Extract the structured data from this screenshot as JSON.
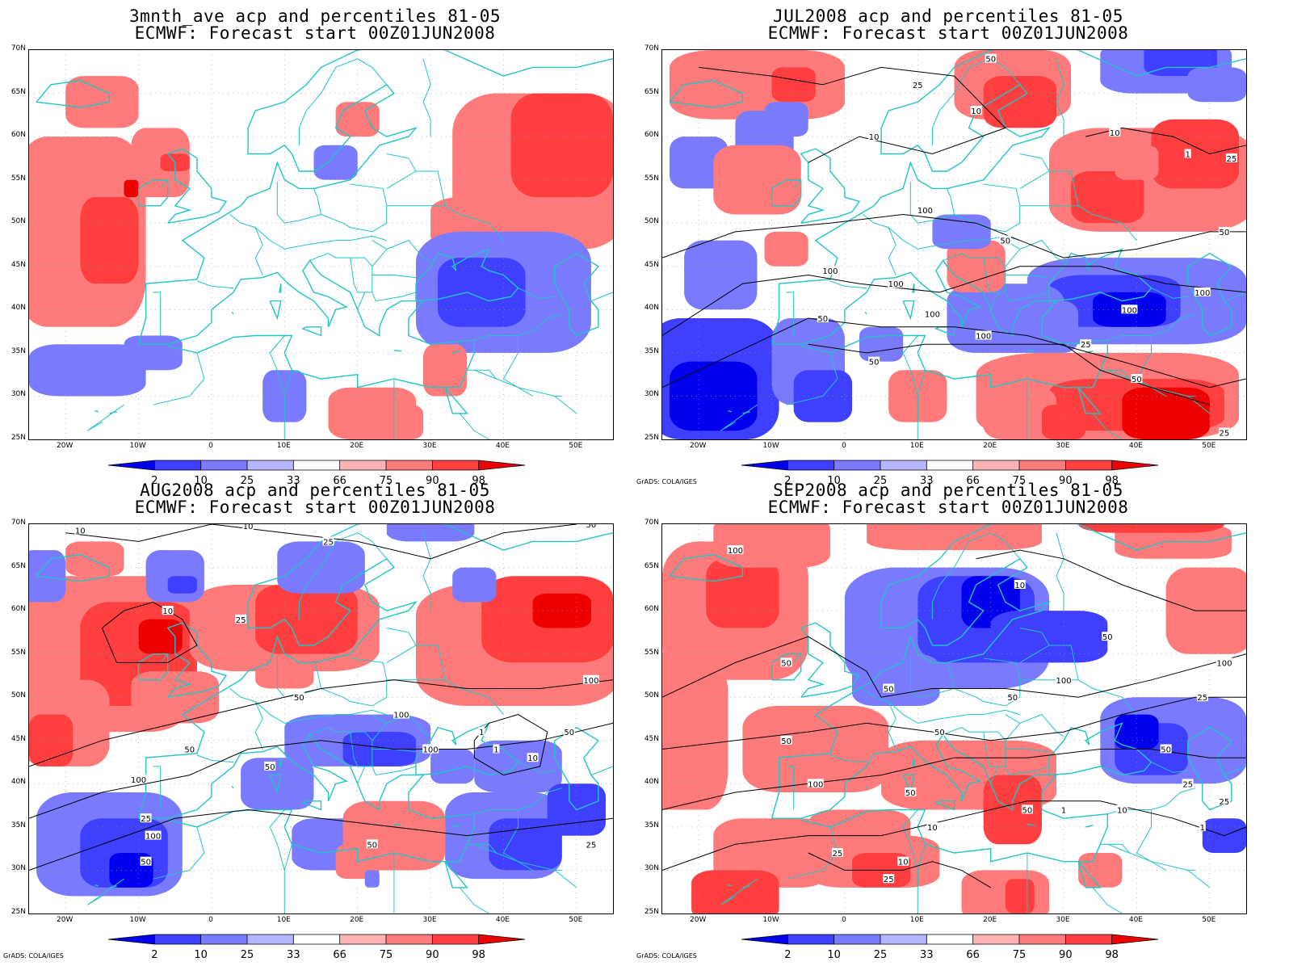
{
  "map_data": {
    "panels": [
      {
        "title1": "3mnth_ave acp and percentiles 81-05",
        "title2": "ECMWF: Forecast start 00Z01JUN2008",
        "source": "",
        "contours": []
      },
      {
        "title1": "JUL2008 acp and percentiles 81-05",
        "title2": "ECMWF: Forecast start 00Z01JUN2008",
        "source": "GrADS: COLA/IGES",
        "contour_labels": [
          "100",
          "50",
          "50",
          "100",
          "100",
          "100",
          "50",
          "100",
          "100",
          "50",
          "100",
          "25",
          "50",
          "25",
          "25",
          "50",
          "10",
          "10",
          "10",
          "1",
          "25",
          "10",
          "1",
          "1",
          "1",
          "1"
        ]
      },
      {
        "title1": "AUG2008 acp and percentiles 81-05",
        "title2": "ECMWF: Forecast start 00Z01JUN2008",
        "source": "GrADS: COLA/IGES",
        "contour_labels": [
          "50",
          "50",
          "100",
          "100",
          "100",
          "50",
          "100",
          "50",
          "25",
          "100",
          "50",
          "50",
          "25",
          "10",
          "10",
          "25",
          "50",
          "10",
          "25",
          "1",
          "1",
          "10",
          "1",
          "1",
          "1"
        ]
      },
      {
        "title1": "SEP2008 acp and percentiles 81-05",
        "title2": "ECMWF: Forecast start 00Z01JUN2008",
        "source": "GrADS: COLA/IGES",
        "contour_labels": [
          "100",
          "50",
          "100",
          "100",
          "50",
          "50",
          "50",
          "50",
          "25",
          "100",
          "50",
          "50",
          "50",
          "25",
          "25",
          "10",
          "10",
          "1",
          "10",
          "1",
          "25",
          "10",
          "50",
          "25",
          "10",
          "1"
        ]
      }
    ],
    "lat_labels": [
      "70N",
      "65N",
      "60N",
      "55N",
      "50N",
      "45N",
      "40N",
      "35N",
      "30N",
      "25N"
    ],
    "lon_labels": [
      "20W",
      "10W",
      "0",
      "10E",
      "20E",
      "30E",
      "40E",
      "50E"
    ],
    "lon_range": [
      -25,
      55
    ],
    "lat_range": [
      25,
      70
    ],
    "colorbar": {
      "labels": [
        "2",
        "10",
        "25",
        "33",
        "66",
        "75",
        "90",
        "98"
      ],
      "colors": [
        "#0000ee",
        "#3f3fff",
        "#7a7aff",
        "#b4b4ff",
        "#ffffff",
        "#ffb4b4",
        "#ff7a7a",
        "#ff3f3f",
        "#ee0000"
      ]
    },
    "coast_color": "#22c4c4",
    "contour_color": "#000000"
  }
}
